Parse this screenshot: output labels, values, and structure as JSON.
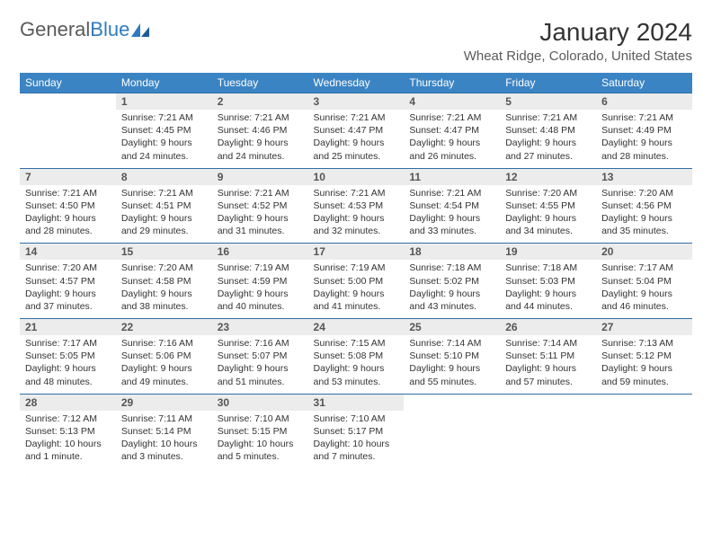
{
  "brand": {
    "part1": "General",
    "part2": "Blue"
  },
  "title": "January 2024",
  "location": "Wheat Ridge, Colorado, United States",
  "colors": {
    "header_bg": "#3b84c4",
    "header_text": "#ffffff",
    "daynum_bg": "#ececec",
    "row_divider": "#2f6fa6",
    "body_text": "#333333",
    "brand_gray": "#5a5a5a",
    "brand_blue": "#2f7bbf"
  },
  "weekdays": [
    "Sunday",
    "Monday",
    "Tuesday",
    "Wednesday",
    "Thursday",
    "Friday",
    "Saturday"
  ],
  "weeks": [
    [
      null,
      {
        "n": "1",
        "sr": "Sunrise: 7:21 AM",
        "ss": "Sunset: 4:45 PM",
        "dl": "Daylight: 9 hours and 24 minutes."
      },
      {
        "n": "2",
        "sr": "Sunrise: 7:21 AM",
        "ss": "Sunset: 4:46 PM",
        "dl": "Daylight: 9 hours and 24 minutes."
      },
      {
        "n": "3",
        "sr": "Sunrise: 7:21 AM",
        "ss": "Sunset: 4:47 PM",
        "dl": "Daylight: 9 hours and 25 minutes."
      },
      {
        "n": "4",
        "sr": "Sunrise: 7:21 AM",
        "ss": "Sunset: 4:47 PM",
        "dl": "Daylight: 9 hours and 26 minutes."
      },
      {
        "n": "5",
        "sr": "Sunrise: 7:21 AM",
        "ss": "Sunset: 4:48 PM",
        "dl": "Daylight: 9 hours and 27 minutes."
      },
      {
        "n": "6",
        "sr": "Sunrise: 7:21 AM",
        "ss": "Sunset: 4:49 PM",
        "dl": "Daylight: 9 hours and 28 minutes."
      }
    ],
    [
      {
        "n": "7",
        "sr": "Sunrise: 7:21 AM",
        "ss": "Sunset: 4:50 PM",
        "dl": "Daylight: 9 hours and 28 minutes."
      },
      {
        "n": "8",
        "sr": "Sunrise: 7:21 AM",
        "ss": "Sunset: 4:51 PM",
        "dl": "Daylight: 9 hours and 29 minutes."
      },
      {
        "n": "9",
        "sr": "Sunrise: 7:21 AM",
        "ss": "Sunset: 4:52 PM",
        "dl": "Daylight: 9 hours and 31 minutes."
      },
      {
        "n": "10",
        "sr": "Sunrise: 7:21 AM",
        "ss": "Sunset: 4:53 PM",
        "dl": "Daylight: 9 hours and 32 minutes."
      },
      {
        "n": "11",
        "sr": "Sunrise: 7:21 AM",
        "ss": "Sunset: 4:54 PM",
        "dl": "Daylight: 9 hours and 33 minutes."
      },
      {
        "n": "12",
        "sr": "Sunrise: 7:20 AM",
        "ss": "Sunset: 4:55 PM",
        "dl": "Daylight: 9 hours and 34 minutes."
      },
      {
        "n": "13",
        "sr": "Sunrise: 7:20 AM",
        "ss": "Sunset: 4:56 PM",
        "dl": "Daylight: 9 hours and 35 minutes."
      }
    ],
    [
      {
        "n": "14",
        "sr": "Sunrise: 7:20 AM",
        "ss": "Sunset: 4:57 PM",
        "dl": "Daylight: 9 hours and 37 minutes."
      },
      {
        "n": "15",
        "sr": "Sunrise: 7:20 AM",
        "ss": "Sunset: 4:58 PM",
        "dl": "Daylight: 9 hours and 38 minutes."
      },
      {
        "n": "16",
        "sr": "Sunrise: 7:19 AM",
        "ss": "Sunset: 4:59 PM",
        "dl": "Daylight: 9 hours and 40 minutes."
      },
      {
        "n": "17",
        "sr": "Sunrise: 7:19 AM",
        "ss": "Sunset: 5:00 PM",
        "dl": "Daylight: 9 hours and 41 minutes."
      },
      {
        "n": "18",
        "sr": "Sunrise: 7:18 AM",
        "ss": "Sunset: 5:02 PM",
        "dl": "Daylight: 9 hours and 43 minutes."
      },
      {
        "n": "19",
        "sr": "Sunrise: 7:18 AM",
        "ss": "Sunset: 5:03 PM",
        "dl": "Daylight: 9 hours and 44 minutes."
      },
      {
        "n": "20",
        "sr": "Sunrise: 7:17 AM",
        "ss": "Sunset: 5:04 PM",
        "dl": "Daylight: 9 hours and 46 minutes."
      }
    ],
    [
      {
        "n": "21",
        "sr": "Sunrise: 7:17 AM",
        "ss": "Sunset: 5:05 PM",
        "dl": "Daylight: 9 hours and 48 minutes."
      },
      {
        "n": "22",
        "sr": "Sunrise: 7:16 AM",
        "ss": "Sunset: 5:06 PM",
        "dl": "Daylight: 9 hours and 49 minutes."
      },
      {
        "n": "23",
        "sr": "Sunrise: 7:16 AM",
        "ss": "Sunset: 5:07 PM",
        "dl": "Daylight: 9 hours and 51 minutes."
      },
      {
        "n": "24",
        "sr": "Sunrise: 7:15 AM",
        "ss": "Sunset: 5:08 PM",
        "dl": "Daylight: 9 hours and 53 minutes."
      },
      {
        "n": "25",
        "sr": "Sunrise: 7:14 AM",
        "ss": "Sunset: 5:10 PM",
        "dl": "Daylight: 9 hours and 55 minutes."
      },
      {
        "n": "26",
        "sr": "Sunrise: 7:14 AM",
        "ss": "Sunset: 5:11 PM",
        "dl": "Daylight: 9 hours and 57 minutes."
      },
      {
        "n": "27",
        "sr": "Sunrise: 7:13 AM",
        "ss": "Sunset: 5:12 PM",
        "dl": "Daylight: 9 hours and 59 minutes."
      }
    ],
    [
      {
        "n": "28",
        "sr": "Sunrise: 7:12 AM",
        "ss": "Sunset: 5:13 PM",
        "dl": "Daylight: 10 hours and 1 minute."
      },
      {
        "n": "29",
        "sr": "Sunrise: 7:11 AM",
        "ss": "Sunset: 5:14 PM",
        "dl": "Daylight: 10 hours and 3 minutes."
      },
      {
        "n": "30",
        "sr": "Sunrise: 7:10 AM",
        "ss": "Sunset: 5:15 PM",
        "dl": "Daylight: 10 hours and 5 minutes."
      },
      {
        "n": "31",
        "sr": "Sunrise: 7:10 AM",
        "ss": "Sunset: 5:17 PM",
        "dl": "Daylight: 10 hours and 7 minutes."
      },
      null,
      null,
      null
    ]
  ]
}
